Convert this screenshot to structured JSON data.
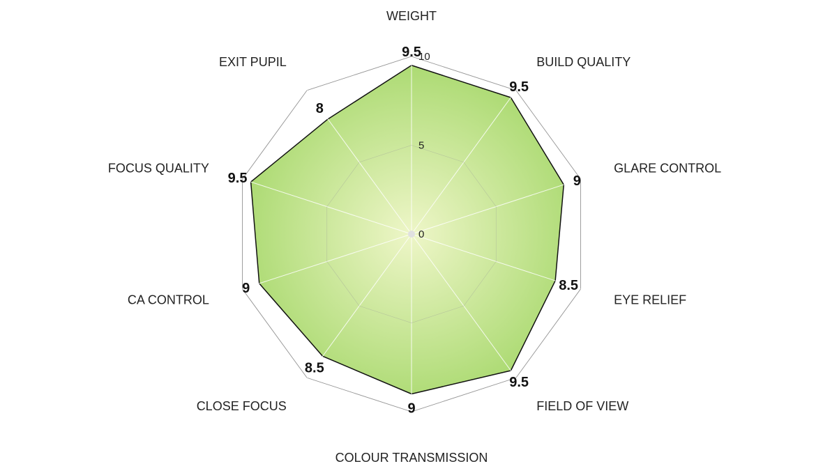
{
  "chart_data": {
    "type": "radar",
    "title": "",
    "categories": [
      "WEIGHT",
      "BUILD QUALITY",
      "GLARE CONTROL",
      "EYE RELIEF",
      "FIELD OF VIEW",
      "COLOUR TRANSMISSION",
      "CLOSE FOCUS",
      "CA CONTROL",
      "FOCUS QUALITY",
      "EXIT PUPIL"
    ],
    "series": [
      {
        "values": [
          9.5,
          9.5,
          9,
          8.5,
          9.5,
          9,
          8.5,
          9,
          9.5,
          8
        ],
        "value_labels": [
          "9.5",
          "9.5",
          "9",
          "8.5",
          "9.5",
          "9",
          "8.5",
          "9",
          "9.5",
          "8"
        ],
        "color": "#a9d96f"
      }
    ],
    "r_range": [
      0,
      10
    ],
    "tick_values": [
      0,
      5,
      10
    ],
    "tick_labels": [
      "0",
      "5",
      "10"
    ],
    "grid": true,
    "legend": "none",
    "colors": {
      "fill_center": "#eef6c8",
      "fill_edge": "#a9d96f",
      "outline": "#111111",
      "grid": "#888888"
    }
  }
}
